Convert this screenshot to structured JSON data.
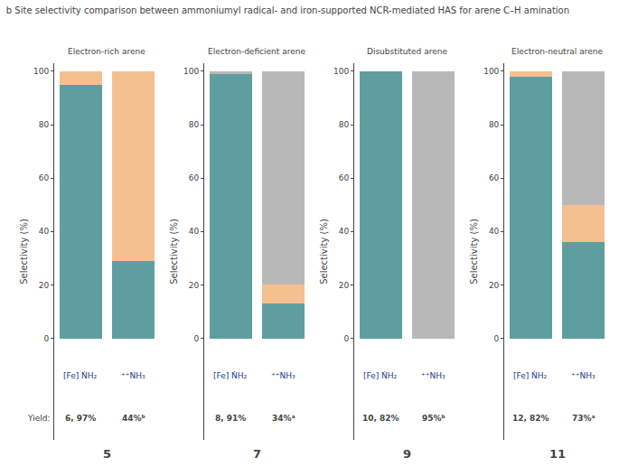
{
  "title": "b Site selectivity comparison between ammoniumyl radical- and iron-supported NCR-mediated HAS for arene C–H amination",
  "chart_data": [
    {
      "type": "bar",
      "stacked": true,
      "title": "Electron-rich arene",
      "subtitle": "5",
      "categories": [
        "[Fe] ṄH₂",
        "⁺⁺NH₃"
      ],
      "series": [
        {
          "color": "#5f9ea0",
          "values": [
            95,
            29
          ]
        },
        {
          "color": "#f4c090",
          "values": [
            5,
            71
          ]
        },
        {
          "color": "#b8b8b8",
          "values": [
            0,
            0
          ]
        }
      ],
      "annotations": [
        {
          "text": "Yield:"
        },
        {
          "text": "6, 97%",
          "category": "[Fe] ṄH₂"
        },
        {
          "text": "44%ᵇ",
          "category": "⁺⁺NH₃"
        }
      ],
      "ylabel": "Selectivity (%)",
      "ylim": [
        -38,
        103
      ],
      "yticks": [
        0,
        20,
        40,
        60,
        80,
        100
      ],
      "grid": false,
      "tick_labels": "y"
    },
    {
      "type": "bar",
      "stacked": true,
      "title": "Electron-deficient arene",
      "subtitle": "7",
      "categories": [
        "[Fe] ṄH₂",
        "⁺⁺NH₃"
      ],
      "series": [
        {
          "color": "#5f9ea0",
          "values": [
            99,
            13
          ]
        },
        {
          "color": "#f4c090",
          "values": [
            0,
            7
          ]
        },
        {
          "color": "#b8b8b8",
          "values": [
            1,
            80
          ]
        }
      ],
      "annotations": [
        {
          "text": "8, 91%",
          "category": "[Fe] ṄH₂"
        },
        {
          "text": "34%ᵃ",
          "category": "⁺⁺NH₃"
        }
      ],
      "ylabel": "Selectivity (%)",
      "ylim": [
        -38,
        103
      ],
      "yticks": [
        0,
        20,
        40,
        60,
        80,
        100
      ],
      "grid": false,
      "tick_labels": "y"
    },
    {
      "type": "bar",
      "stacked": true,
      "title": "Disubstituted arene",
      "subtitle": "9",
      "categories": [
        "[Fe] ṄH₂",
        "⁺⁺NH₃"
      ],
      "series": [
        {
          "color": "#5f9ea0",
          "values": [
            100,
            0
          ]
        },
        {
          "color": "#f4c090",
          "values": [
            0,
            0
          ]
        },
        {
          "color": "#b8b8b8",
          "values": [
            0,
            100
          ]
        }
      ],
      "annotations": [
        {
          "text": "10, 82%",
          "category": "[Fe] ṄH₂"
        },
        {
          "text": "95%ᵇ",
          "category": "⁺⁺NH₃"
        }
      ],
      "ylabel": "Selectivity (%)",
      "ylim": [
        -38,
        103
      ],
      "yticks": [
        0,
        20,
        40,
        60,
        80,
        100
      ],
      "grid": false,
      "tick_labels": "y"
    },
    {
      "type": "bar",
      "stacked": true,
      "title": "Electron-neutral arene",
      "subtitle": "11",
      "categories": [
        "[Fe] ṄH₂",
        "⁺⁺NH₃"
      ],
      "series": [
        {
          "color": "#5f9ea0",
          "values": [
            98,
            36
          ]
        },
        {
          "color": "#f4c090",
          "values": [
            2,
            14
          ]
        },
        {
          "color": "#b8b8b8",
          "values": [
            0,
            50
          ]
        }
      ],
      "annotations": [
        {
          "text": "12, 82%",
          "category": "[Fe] ṄH₂"
        },
        {
          "text": "73%ᵃ",
          "category": "⁺⁺NH₃"
        }
      ],
      "ylabel": "Selectivity (%)",
      "ylim": [
        -38,
        103
      ],
      "yticks": [
        0,
        20,
        40,
        60,
        80,
        100
      ],
      "grid": false,
      "tick_labels": "y"
    }
  ]
}
